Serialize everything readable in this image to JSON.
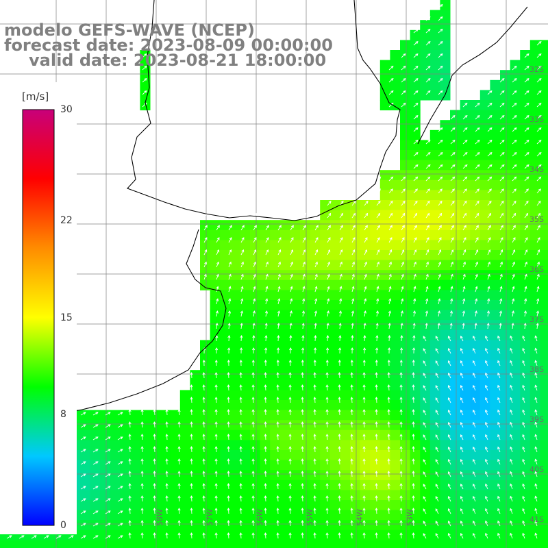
{
  "title": {
    "line1": "modelo GEFS-WAVE (NCEP)",
    "line2": "forecast date: 2023-08-09 00:00:00",
    "line3": "valid date: 2023-08-21 18:00:00"
  },
  "colorbar": {
    "unit": "[m/s]",
    "ticks": [
      "30",
      "22",
      "15",
      "8",
      "0"
    ],
    "tick_values": [
      30,
      22,
      15,
      8,
      0
    ],
    "stops": [
      "#0000ff",
      "#00c8ff",
      "#00ff00",
      "#ffff00",
      "#ff8c00",
      "#ff0000",
      "#c8007a"
    ]
  },
  "lat_labels": [
    "32S",
    "33S",
    "34S",
    "35S",
    "36S",
    "37S",
    "38S",
    "39S",
    "40S",
    "41S"
  ],
  "lon_labels": [
    "58W",
    "57W",
    "56W",
    "55W",
    "54W",
    "53W"
  ],
  "colors": {
    "land": "#ffffff",
    "coastline": "#000000",
    "grid": "#808080",
    "arrow": "#ffffff"
  }
}
